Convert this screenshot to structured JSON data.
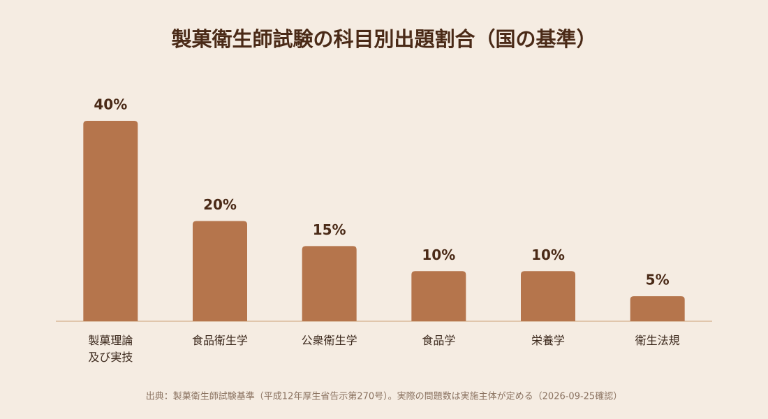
{
  "chart_data": {
    "type": "bar",
    "title": "製菓衛生師試験の科目別出題割合（国の基準）",
    "categories": [
      "製菓理論\n及び実技",
      "食品衛生学",
      "公衆衛生学",
      "食品学",
      "栄養学",
      "衛生法規"
    ],
    "values": [
      40,
      20,
      15,
      10,
      10,
      5
    ],
    "value_labels": [
      "40%",
      "20%",
      "15%",
      "10%",
      "10%",
      "5%"
    ],
    "color": "#b5754c",
    "source": "出典：製菓衛生師試験基準（平成12年厚生省告示第270号）。実際の問題数は実施主体が定める（2026-09-25確認）"
  }
}
